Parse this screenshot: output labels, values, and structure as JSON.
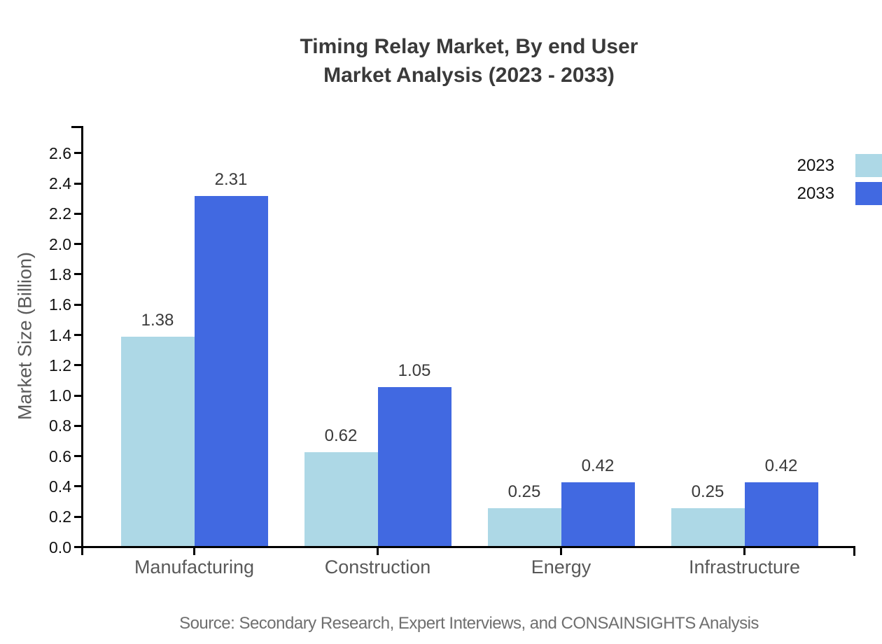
{
  "title": {
    "line1": "Timing Relay Market, By end User",
    "line2": "Market Analysis (2023 - 2033)"
  },
  "source": "Source: Secondary Research, Expert Interviews, and CONSAINSIGHTS Analysis",
  "chart_data": {
    "type": "bar",
    "title": "Timing Relay Market, By end User Market Analysis (2023 - 2033)",
    "categories": [
      "Manufacturing",
      "Construction",
      "Energy",
      "Infrastructure"
    ],
    "series": [
      {
        "name": "2023",
        "color": "#ADD8E6",
        "values": [
          1.38,
          0.62,
          0.25,
          0.25
        ]
      },
      {
        "name": "2033",
        "color": "#4169E1",
        "values": [
          2.31,
          1.05,
          0.42,
          0.42
        ]
      }
    ],
    "xlabel": "",
    "ylabel": "Market Size (Billion)",
    "ylim": [
      0,
      2.78
    ],
    "yticks": [
      0.0,
      0.2,
      0.4,
      0.6,
      0.8,
      1.0,
      1.2,
      1.4,
      1.6,
      1.8,
      2.0,
      2.2,
      2.4,
      2.6
    ],
    "grid": false,
    "legend_position": "top-right",
    "value_labels": true,
    "axis_color": "#000000",
    "title_color": "#3a3a3a",
    "tick_label_color": "#111111",
    "category_label_color": "#595959",
    "value_label_color": "#3a3a3a",
    "source_color": "#6f6f6f",
    "background_color": "#ffffff"
  }
}
